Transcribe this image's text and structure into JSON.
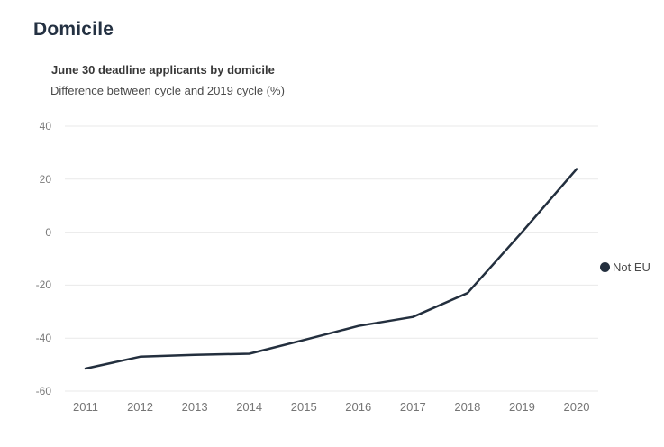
{
  "page": {
    "title": "Domicile"
  },
  "colors": {
    "line": "#232f3e",
    "grid": "#e9e9e9",
    "title": "#243142",
    "tick_label": "#757575",
    "background": "#ffffff"
  },
  "legend": {
    "label": "Not EU"
  },
  "chart_data": {
    "type": "line",
    "title": "June 30 deadline applicants by domicile",
    "subtitle": "Difference between cycle and 2019 cycle (%)",
    "categories": [
      "2011",
      "2012",
      "2013",
      "2014",
      "2015",
      "2016",
      "2017",
      "2018",
      "2019",
      "2020"
    ],
    "series": [
      {
        "name": "Not EU",
        "color": "#232f3e",
        "values": [
          -51.5,
          -47,
          -46.3,
          -45.9,
          -40.7,
          -35.4,
          -32,
          -23,
          0,
          23.8
        ]
      }
    ],
    "xlabel": "",
    "ylabel": "",
    "ylim": [
      -60,
      40
    ],
    "yticks": [
      40,
      20,
      0,
      -20,
      -40,
      -60
    ],
    "grid": true,
    "legend_position": "right",
    "legend_labels": [
      "Not EU"
    ]
  }
}
